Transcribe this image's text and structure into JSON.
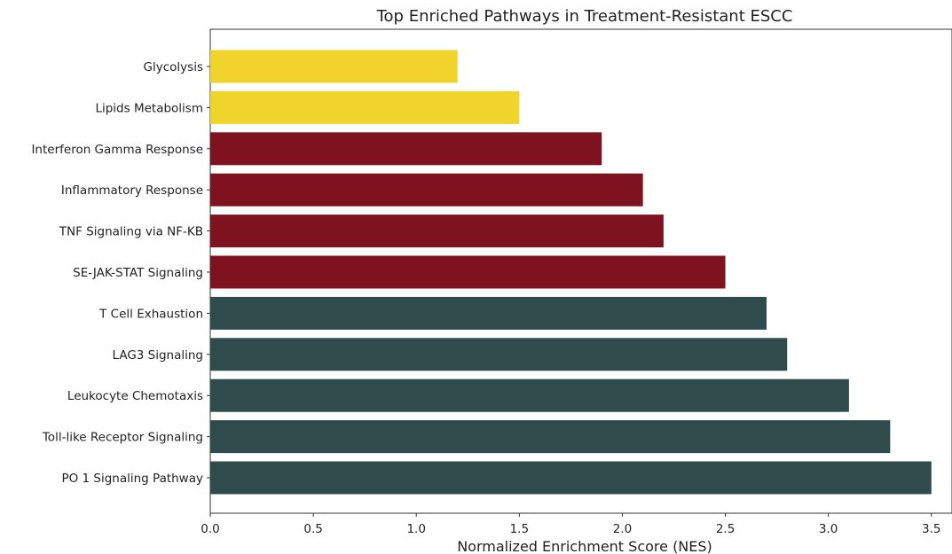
{
  "chart_data": {
    "type": "bar",
    "orientation": "horizontal",
    "title": "Top Enriched Pathways in Treatment-Resistant ESCC",
    "xlabel": "Normalized Enrichment Score (NES)",
    "ylabel": "",
    "xlim": [
      0,
      3.6
    ],
    "xticks": [
      "0.0",
      "0.5",
      "1.0",
      "1.5",
      "2.0",
      "2.5",
      "3.0",
      "3.5"
    ],
    "grid": false,
    "categories": [
      "Glycolysis",
      "Lipids Metabolism",
      "Interferon Gamma Response",
      "Inflammatory Response",
      "TNF Signaling via NF-KB",
      "SE-JAK-STAT Signaling",
      "T Cell Exhaustion",
      "LAG3 Signaling",
      "Leukocyte Chemotaxis",
      "Toll-like Receptor Signaling",
      "PO 1 Signaling Pathway"
    ],
    "values": [
      1.2,
      1.5,
      1.9,
      2.1,
      2.2,
      2.5,
      2.7,
      2.8,
      3.1,
      3.3,
      3.5
    ],
    "colors": [
      "#f0d42c",
      "#f0d42c",
      "#7f121f",
      "#7f121f",
      "#7f121f",
      "#7f121f",
      "#2f4b4b",
      "#2f4b4b",
      "#2f4b4b",
      "#2f4b4b",
      "#2f4b4b"
    ]
  }
}
